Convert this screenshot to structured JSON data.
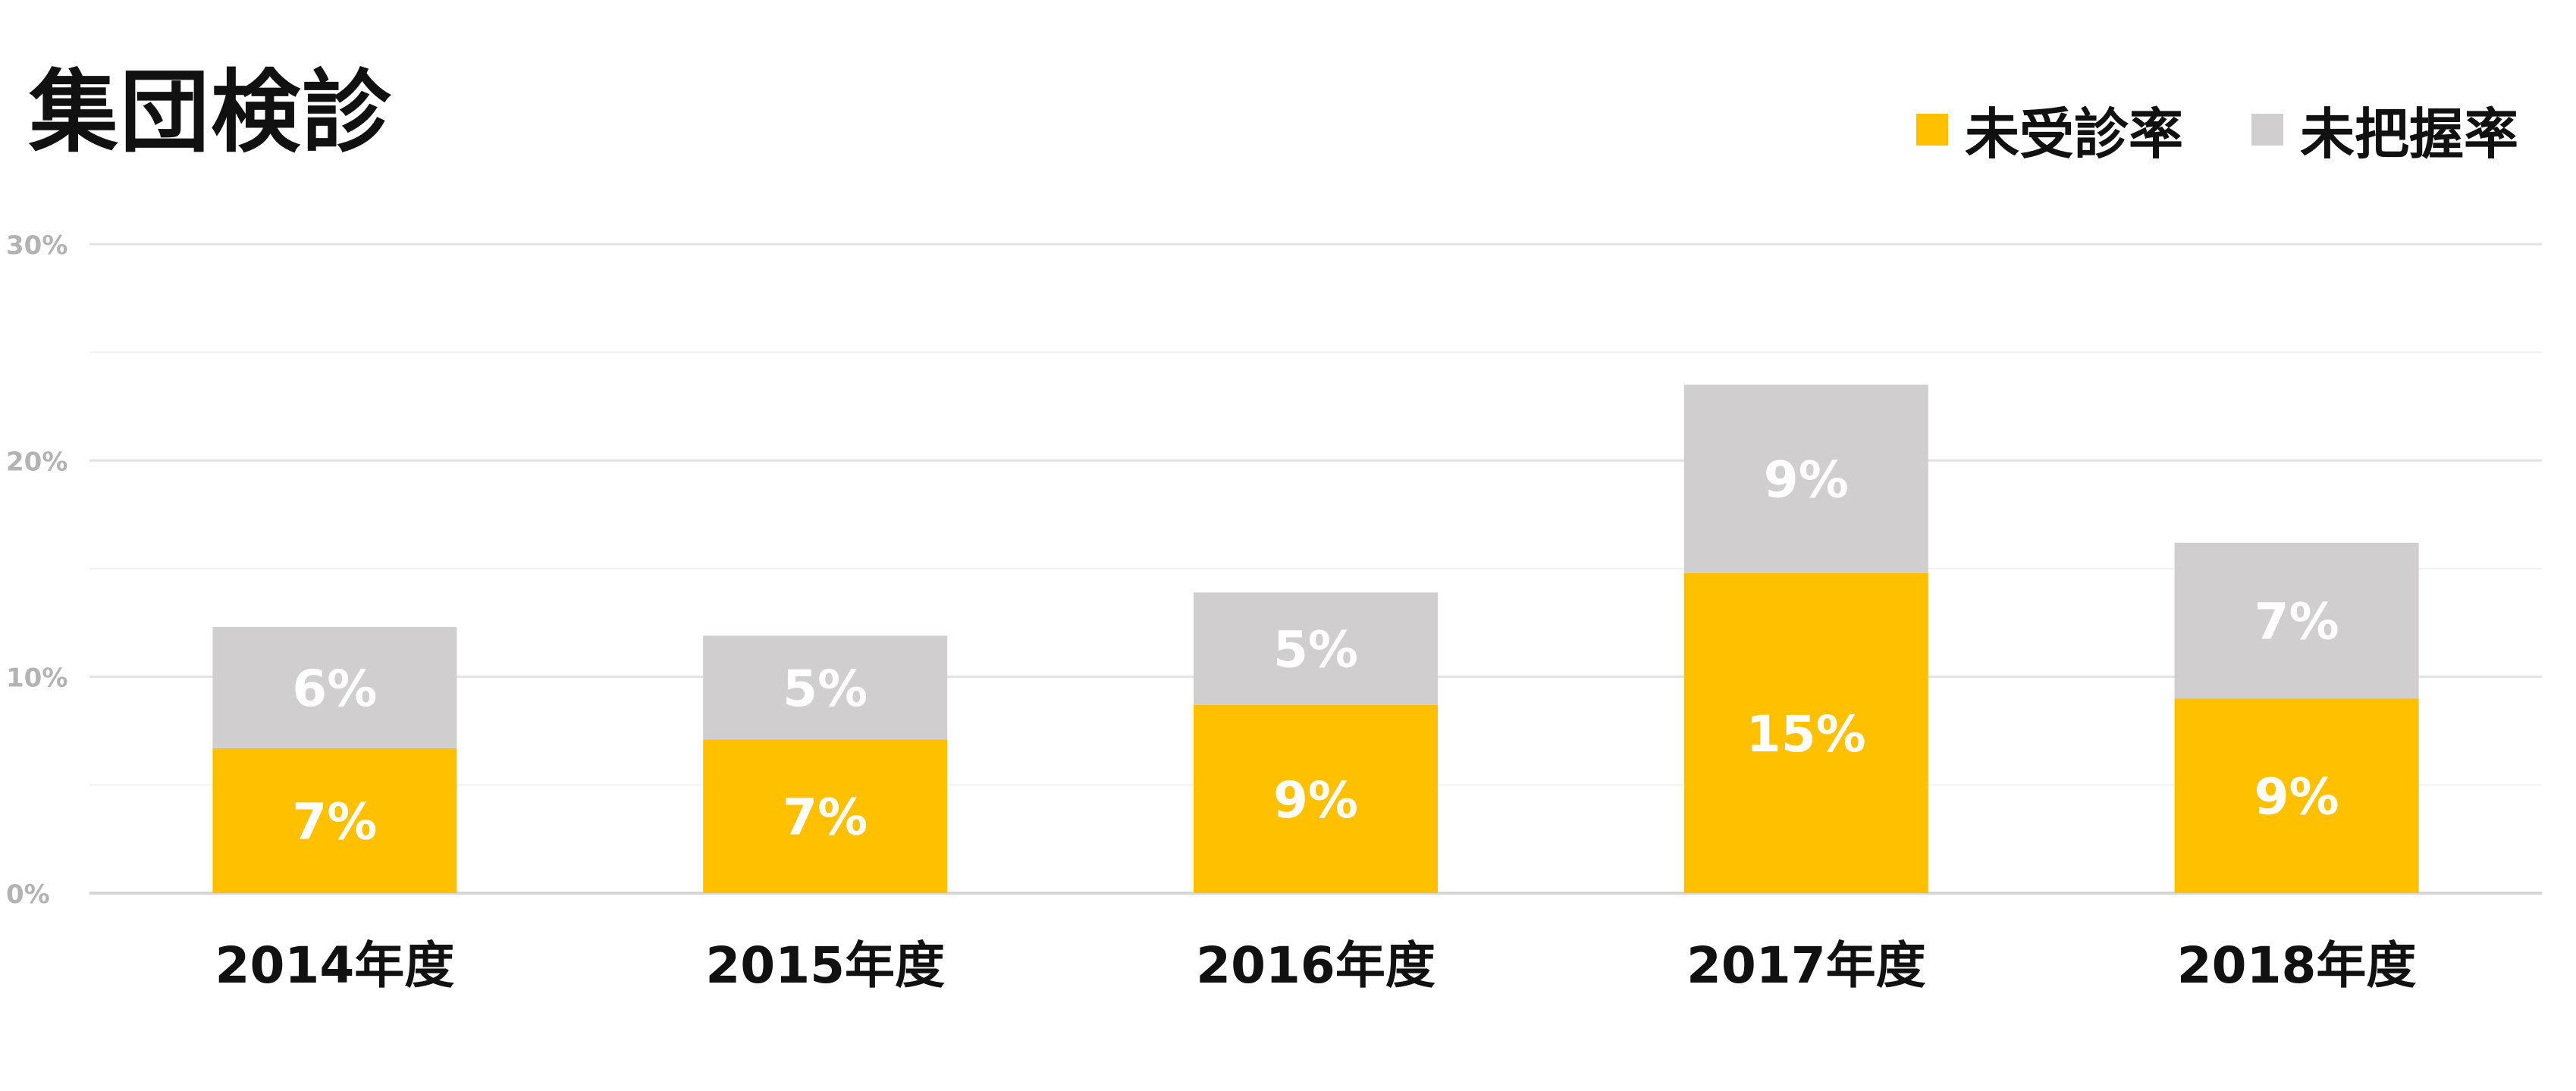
{
  "chart_data": {
    "type": "bar",
    "stacked": true,
    "title": "集団検診",
    "categories": [
      "2014年度",
      "2015年度",
      "2016年度",
      "2017年度",
      "2018年度"
    ],
    "series": [
      {
        "name": "未受診率",
        "color": "#FFC000",
        "values": [
          6.7,
          7.1,
          8.7,
          14.8,
          9.0
        ],
        "labels": [
          "7%",
          "7%",
          "9%",
          "15%",
          "9%"
        ]
      },
      {
        "name": "未把握率",
        "color": "#D0CECE",
        "values": [
          5.6,
          4.8,
          5.2,
          8.7,
          7.2
        ],
        "labels": [
          "6%",
          "5%",
          "5%",
          "9%",
          "7%"
        ]
      }
    ],
    "ylim": [
      0,
      30
    ],
    "yticks": [
      0,
      10,
      20,
      30
    ],
    "ytick_labels": [
      "0%",
      "10%",
      "20%",
      "30%"
    ],
    "minor_grid": [
      5,
      15,
      25
    ],
    "grid": true,
    "legend_position": "top-right",
    "xlabel": "",
    "ylabel": ""
  }
}
